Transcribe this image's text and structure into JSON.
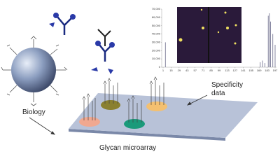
{
  "labels": {
    "biology": "Biology",
    "microarray": "Glycan microarray",
    "specificity": [
      "Specificity",
      "data"
    ]
  },
  "chart": {
    "type": "bar",
    "color": "#6a6a8a",
    "x": [
      5,
      171,
      175,
      179,
      185,
      187,
      189,
      193,
      197
    ],
    "values": [
      30000,
      6000,
      8000,
      5000,
      62000,
      65000,
      55000,
      40000,
      27000
    ],
    "xlim": [
      1,
      197
    ],
    "ylim": [
      0,
      70000
    ],
    "xticks": [
      1,
      15,
      29,
      43,
      57,
      71,
      85,
      99,
      113,
      127,
      141,
      155,
      169,
      183,
      197
    ],
    "yticks": [
      0,
      {
        "value": 10000,
        "label": "10,000"
      },
      {
        "value": 20000,
        "label": "20,000"
      },
      {
        "value": 30000,
        "label": "30,000"
      },
      {
        "value": 40000,
        "label": "40,000"
      },
      {
        "value": 50000,
        "label": "50,000"
      },
      {
        "value": 60000,
        "label": "60,000"
      },
      {
        "value": 70000,
        "label": "70,000"
      }
    ]
  }
}
